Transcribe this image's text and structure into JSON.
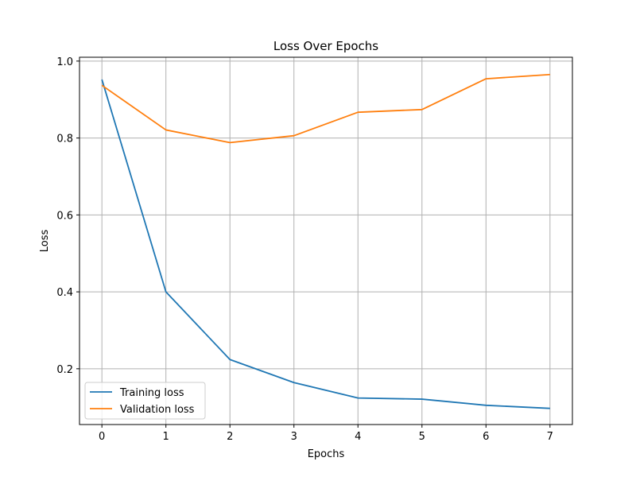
{
  "chart_data": {
    "type": "line",
    "title": "Loss Over Epochs",
    "xlabel": "Epochs",
    "ylabel": "Loss",
    "x": [
      0,
      1,
      2,
      3,
      4,
      5,
      6,
      7
    ],
    "xlim": [
      -0.35,
      7.35
    ],
    "ylim": [
      0.055,
      1.01
    ],
    "xticks": [
      0,
      1,
      2,
      3,
      4,
      5,
      6,
      7
    ],
    "xtick_labels": [
      "0",
      "1",
      "2",
      "3",
      "4",
      "5",
      "6",
      "7"
    ],
    "yticks": [
      0.2,
      0.4,
      0.6,
      0.8,
      1.0
    ],
    "ytick_labels": [
      "0.2",
      "0.4",
      "0.6",
      "0.8",
      "1.0"
    ],
    "grid": true,
    "legend_position": "bottom-left",
    "series": [
      {
        "name": "Training loss",
        "color": "#1f77b4",
        "values": [
          0.952,
          0.4,
          0.224,
          0.164,
          0.124,
          0.121,
          0.105,
          0.097
        ]
      },
      {
        "name": "Validation loss",
        "color": "#ff7f0e",
        "values": [
          0.937,
          0.821,
          0.788,
          0.806,
          0.867,
          0.874,
          0.954,
          0.965
        ]
      }
    ]
  }
}
